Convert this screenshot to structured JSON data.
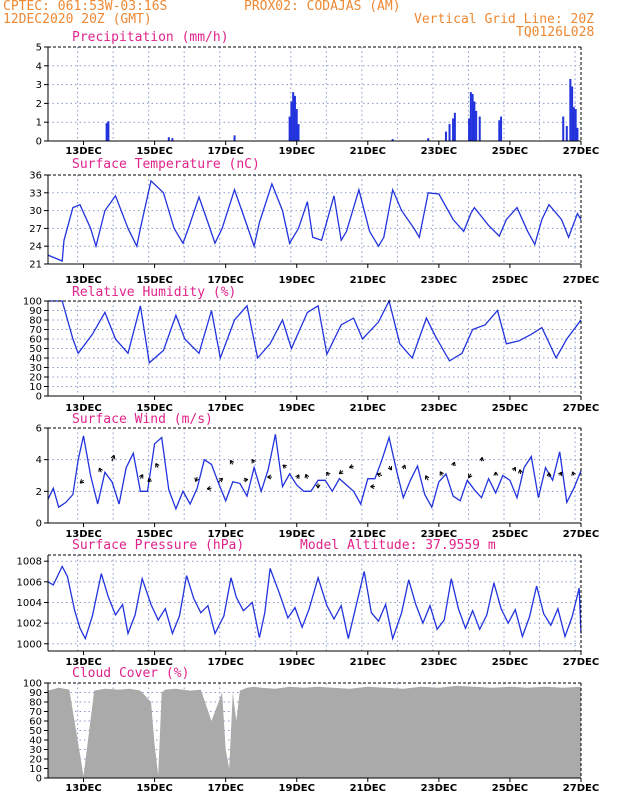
{
  "header": {
    "line1_left": "CPTEC:   061:53W-03:16S",
    "line1_right": "PROX02: CODAJAS (AM)",
    "line2_left": "12DEC2020 20Z (GMT)",
    "line2_right": "Vertical Grid Line: 20Z",
    "line3_right": "TQ0126L028"
  },
  "colors": {
    "header": "#ee8833",
    "title": "#e0228a",
    "series": "#2233dd",
    "cloud": "#aaaaaa",
    "grid": "#8899cc"
  },
  "chart_data": [
    {
      "type": "bar",
      "title": "Precipitation (mm/h)",
      "ylim": [
        0,
        5
      ],
      "yticks": [
        "0",
        "1",
        "2",
        "3",
        "4",
        "5"
      ],
      "xticks": [
        "13DEC",
        "15DEC",
        "17DEC",
        "19DEC",
        "21DEC",
        "23DEC",
        "25DEC",
        "27DEC"
      ],
      "bars": [
        [
          13.65,
          0.95
        ],
        [
          13.7,
          1.05
        ],
        [
          15.4,
          0.2
        ],
        [
          15.5,
          0.15
        ],
        [
          17.25,
          0.3
        ],
        [
          18.8,
          1.3
        ],
        [
          18.85,
          2.1
        ],
        [
          18.9,
          2.6
        ],
        [
          18.95,
          2.4
        ],
        [
          19.0,
          1.7
        ],
        [
          19.05,
          0.9
        ],
        [
          21.7,
          0.1
        ],
        [
          22.7,
          0.15
        ],
        [
          23.2,
          0.5
        ],
        [
          23.3,
          0.9
        ],
        [
          23.4,
          1.2
        ],
        [
          23.45,
          1.5
        ],
        [
          23.85,
          1.2
        ],
        [
          23.9,
          2.6
        ],
        [
          23.95,
          2.5
        ],
        [
          24.0,
          2.1
        ],
        [
          24.05,
          1.6
        ],
        [
          24.15,
          1.3
        ],
        [
          24.7,
          1.1
        ],
        [
          24.75,
          1.3
        ],
        [
          26.5,
          1.3
        ],
        [
          26.6,
          0.8
        ],
        [
          26.7,
          3.3
        ],
        [
          26.75,
          2.9
        ],
        [
          26.8,
          1.8
        ],
        [
          26.85,
          1.7
        ],
        [
          26.9,
          0.7
        ]
      ]
    },
    {
      "type": "line",
      "title": "Surface Temperature (nC)",
      "ylim": [
        21,
        36
      ],
      "yticks": [
        "21",
        "24",
        "27",
        "30",
        "33",
        "36"
      ],
      "xticks": [
        "13DEC",
        "15DEC",
        "17DEC",
        "19DEC",
        "21DEC",
        "23DEC",
        "25DEC",
        "27DEC"
      ],
      "x": [
        12.0,
        12.4,
        12.45,
        12.7,
        12.9,
        13.2,
        13.35,
        13.6,
        13.9,
        14.25,
        14.5,
        14.6,
        14.9,
        15.25,
        15.55,
        15.8,
        15.95,
        16.25,
        16.5,
        16.7,
        16.9,
        17.25,
        17.6,
        17.8,
        17.95,
        18.3,
        18.6,
        18.8,
        19.05,
        19.3,
        19.45,
        19.7,
        20.05,
        20.25,
        20.4,
        20.75,
        21.05,
        21.3,
        21.45,
        21.7,
        21.95,
        22.3,
        22.45,
        22.7,
        23.0,
        23.4,
        23.7,
        23.9,
        24.0,
        24.4,
        24.7,
        24.9,
        25.2,
        25.5,
        25.7,
        25.9,
        26.1,
        26.45,
        26.65,
        26.9,
        27.0
      ],
      "values": [
        22.5,
        21.5,
        25,
        30.5,
        31,
        27,
        24,
        30,
        32.5,
        27,
        24,
        27,
        35,
        33,
        27,
        24.5,
        27,
        32.3,
        28,
        24.5,
        27,
        33.5,
        27.5,
        24,
        28,
        34.5,
        30,
        24.5,
        27,
        31.5,
        25.5,
        25,
        32.5,
        25,
        26.5,
        33.5,
        26.5,
        24,
        25.5,
        33.5,
        30,
        27,
        25.5,
        33,
        32.8,
        28.5,
        26.5,
        29.5,
        30.5,
        27.5,
        25.7,
        28.5,
        30.5,
        26.5,
        24.3,
        28.5,
        31,
        28.5,
        25.5,
        29.5,
        28.5
      ]
    },
    {
      "type": "line",
      "title": "Relative Humidity (%)",
      "ylim": [
        0,
        100
      ],
      "yticks": [
        "0",
        "10",
        "20",
        "30",
        "40",
        "50",
        "60",
        "70",
        "80",
        "90",
        "100"
      ],
      "xticks": [
        "13DEC",
        "15DEC",
        "17DEC",
        "19DEC",
        "21DEC",
        "23DEC",
        "25DEC",
        "27DEC"
      ],
      "x": [
        12.0,
        12.4,
        12.7,
        12.85,
        13.25,
        13.6,
        13.9,
        14.25,
        14.6,
        14.85,
        15.25,
        15.6,
        15.85,
        16.25,
        16.6,
        16.85,
        17.25,
        17.6,
        17.9,
        18.25,
        18.6,
        18.85,
        19.3,
        19.6,
        19.85,
        20.25,
        20.6,
        20.85,
        21.3,
        21.6,
        21.9,
        22.25,
        22.65,
        22.9,
        23.3,
        23.65,
        23.95,
        24.3,
        24.65,
        24.9,
        25.25,
        25.6,
        25.9,
        26.3,
        26.6,
        26.9,
        27.0
      ],
      "values": [
        100,
        100,
        60,
        45,
        65,
        88,
        60,
        45,
        95,
        35,
        48,
        85,
        60,
        45,
        90,
        40,
        80,
        95,
        40,
        55,
        80,
        50,
        88,
        95,
        44,
        75,
        82,
        60,
        78,
        100,
        55,
        40,
        82,
        63,
        37,
        45,
        70,
        75,
        90,
        55,
        58,
        65,
        72,
        40,
        60,
        75,
        80
      ]
    },
    {
      "type": "line",
      "title": "Surface Wind (m/s)",
      "ylim": [
        0,
        6
      ],
      "yticks": [
        "0",
        "2",
        "4",
        "6"
      ],
      "xticks": [
        "13DEC",
        "15DEC",
        "17DEC",
        "19DEC",
        "21DEC",
        "23DEC",
        "25DEC",
        "27DEC"
      ],
      "x": [
        12.0,
        12.15,
        12.3,
        12.5,
        12.7,
        12.85,
        13.0,
        13.2,
        13.4,
        13.6,
        13.8,
        14.0,
        14.2,
        14.4,
        14.6,
        14.8,
        15.0,
        15.2,
        15.4,
        15.6,
        15.8,
        16.0,
        16.2,
        16.4,
        16.6,
        16.8,
        17.0,
        17.2,
        17.4,
        17.6,
        17.8,
        18.0,
        18.2,
        18.4,
        18.6,
        18.8,
        19.0,
        19.2,
        19.4,
        19.6,
        19.8,
        20.0,
        20.2,
        20.4,
        20.6,
        20.8,
        21.0,
        21.2,
        21.4,
        21.6,
        21.8,
        22.0,
        22.2,
        22.4,
        22.6,
        22.8,
        23.0,
        23.2,
        23.4,
        23.6,
        23.8,
        24.0,
        24.2,
        24.4,
        24.6,
        24.8,
        25.0,
        25.2,
        25.4,
        25.6,
        25.8,
        26.0,
        26.2,
        26.4,
        26.6,
        26.8,
        27.0
      ],
      "values": [
        1.5,
        2.2,
        1.0,
        1.3,
        1.8,
        4.0,
        5.5,
        3.0,
        1.2,
        3.2,
        2.6,
        1.2,
        3.5,
        4.4,
        2.0,
        2.0,
        5.0,
        5.4,
        2.1,
        0.9,
        2.0,
        1.2,
        2.2,
        4.0,
        3.7,
        2.5,
        1.4,
        2.6,
        2.5,
        1.7,
        3.5,
        2.0,
        3.4,
        5.6,
        2.3,
        3.1,
        2.4,
        2.0,
        2.0,
        2.7,
        2.7,
        2.0,
        2.8,
        2.4,
        2.0,
        1.2,
        2.8,
        2.8,
        4.0,
        5.4,
        3.4,
        1.6,
        2.7,
        3.6,
        1.8,
        1.0,
        2.6,
        3.1,
        1.7,
        1.4,
        2.7,
        2.1,
        1.6,
        2.8,
        1.9,
        3.0,
        2.7,
        1.6,
        3.5,
        4.2,
        1.6,
        3.5,
        2.7,
        4.5,
        1.3,
        2.2,
        3.3
      ],
      "arrows": [
        [
          13.0,
          2.7,
          220,
          0.28
        ],
        [
          13.5,
          3.2,
          115,
          0.3
        ],
        [
          13.8,
          3.9,
          70,
          0.4
        ],
        [
          14.6,
          2.8,
          60,
          0.3
        ],
        [
          14.9,
          2.8,
          225,
          0.28
        ],
        [
          15.1,
          3.5,
          120,
          0.3
        ],
        [
          16.2,
          2.9,
          250,
          0.3
        ],
        [
          16.6,
          2.2,
          190,
          0.28
        ],
        [
          16.8,
          2.6,
          40,
          0.34
        ],
        [
          17.2,
          3.7,
          120,
          0.3
        ],
        [
          17.5,
          2.7,
          10,
          0.28
        ],
        [
          17.8,
          3.8,
          120,
          0.25
        ],
        [
          18.3,
          2.9,
          180,
          0.28
        ],
        [
          18.7,
          3.5,
          140,
          0.26
        ],
        [
          19.0,
          2.8,
          60,
          0.28
        ],
        [
          19.3,
          2.8,
          110,
          0.3
        ],
        [
          19.6,
          2.5,
          270,
          0.3
        ],
        [
          19.9,
          3.0,
          120,
          0.25
        ],
        [
          20.3,
          3.3,
          220,
          0.3
        ],
        [
          20.6,
          3.6,
          200,
          0.28
        ],
        [
          21.2,
          2.3,
          180,
          0.28
        ],
        [
          21.4,
          3.0,
          160,
          0.33
        ],
        [
          21.6,
          3.6,
          300,
          0.3
        ],
        [
          22.0,
          3.4,
          70,
          0.28
        ],
        [
          22.7,
          2.7,
          120,
          0.33
        ],
        [
          23.1,
          3.0,
          120,
          0.28
        ],
        [
          23.4,
          3.6,
          70,
          0.26
        ],
        [
          23.9,
          3.1,
          240,
          0.28
        ],
        [
          24.2,
          3.9,
          80,
          0.25
        ],
        [
          24.6,
          3.0,
          90,
          0.22
        ],
        [
          25.1,
          3.3,
          60,
          0.25
        ],
        [
          25.3,
          3.1,
          100,
          0.28
        ],
        [
          26.1,
          2.9,
          90,
          0.28
        ],
        [
          26.4,
          3.0,
          60,
          0.25
        ],
        [
          26.8,
          3.0,
          110,
          0.25
        ]
      ]
    },
    {
      "type": "line",
      "title": "Surface Pressure (hPa)",
      "annotation": "Model Altitude: 37.9559 m",
      "ylim": [
        999.3,
        1008.6
      ],
      "yticks": [
        "1000",
        "1002",
        "1004",
        "1006",
        "1008"
      ],
      "xticks": [
        "13DEC",
        "15DEC",
        "17DEC",
        "19DEC",
        "21DEC",
        "23DEC",
        "25DEC",
        "27DEC"
      ],
      "x": [
        12.0,
        12.15,
        12.4,
        12.55,
        12.75,
        12.9,
        13.05,
        13.25,
        13.5,
        13.7,
        13.9,
        14.1,
        14.25,
        14.45,
        14.65,
        14.9,
        15.1,
        15.3,
        15.5,
        15.7,
        15.9,
        16.1,
        16.3,
        16.5,
        16.7,
        16.95,
        17.15,
        17.3,
        17.5,
        17.75,
        17.95,
        18.1,
        18.25,
        18.5,
        18.75,
        18.95,
        19.15,
        19.35,
        19.6,
        19.85,
        20.05,
        20.25,
        20.45,
        20.65,
        20.9,
        21.1,
        21.3,
        21.5,
        21.7,
        21.95,
        22.15,
        22.35,
        22.55,
        22.75,
        22.95,
        23.15,
        23.35,
        23.55,
        23.75,
        23.95,
        24.15,
        24.35,
        24.55,
        24.75,
        24.95,
        25.15,
        25.35,
        25.55,
        25.75,
        25.95,
        26.15,
        26.35,
        26.55,
        26.75,
        26.95,
        27.0
      ],
      "values": [
        1006,
        1005.7,
        1007.5,
        1006.5,
        1003.2,
        1001.5,
        1000.5,
        1002.7,
        1006.8,
        1004.5,
        1002.8,
        1003.8,
        1001,
        1002.8,
        1006.3,
        1003.8,
        1002.3,
        1003.4,
        1001,
        1002.7,
        1006.6,
        1004.4,
        1003,
        1003.7,
        1001,
        1002.7,
        1006.4,
        1004.5,
        1003.2,
        1004,
        1000.6,
        1003,
        1007.3,
        1005,
        1002.5,
        1003.5,
        1001.6,
        1003.4,
        1006.4,
        1003.7,
        1002.4,
        1003.7,
        1000.5,
        1003.4,
        1007,
        1003,
        1002.2,
        1003.8,
        1000.5,
        1003,
        1006.2,
        1003.8,
        1002,
        1003.7,
        1001.4,
        1002.3,
        1006.3,
        1003.4,
        1001.5,
        1003.2,
        1001.4,
        1002.8,
        1005.9,
        1003.4,
        1002,
        1003.3,
        1000.7,
        1002.6,
        1005.6,
        1002.9,
        1001.8,
        1003.4,
        1000.7,
        1002.6,
        1005.4,
        1001
      ]
    },
    {
      "type": "bar",
      "title": "Cloud Cover (%)",
      "ylim": [
        0,
        100
      ],
      "yticks": [
        "0",
        "10",
        "20",
        "30",
        "40",
        "50",
        "60",
        "70",
        "80",
        "90",
        "100"
      ],
      "xticks": [
        "13DEC",
        "15DEC",
        "17DEC",
        "19DEC",
        "21DEC",
        "23DEC",
        "25DEC",
        "27DEC"
      ],
      "x": [
        12.0,
        12.3,
        12.6,
        12.9,
        13.0,
        13.3,
        13.6,
        14.0,
        14.3,
        14.6,
        14.9,
        15.0,
        15.1,
        15.2,
        15.3,
        15.6,
        16.0,
        16.3,
        16.6,
        16.9,
        17.0,
        17.1,
        17.2,
        17.3,
        17.4,
        17.6,
        17.8,
        18.0,
        18.4,
        18.8,
        19.2,
        19.6,
        20.0,
        20.5,
        21.0,
        21.5,
        22.0,
        22.5,
        23.0,
        23.5,
        24.0,
        24.5,
        25.0,
        25.5,
        26.0,
        26.5,
        27.0
      ],
      "values": [
        92,
        95,
        93,
        25,
        2,
        92,
        94,
        93,
        94,
        92,
        80,
        35,
        3,
        90,
        93,
        94,
        92,
        93,
        60,
        90,
        30,
        10,
        90,
        60,
        92,
        95,
        96,
        95,
        94,
        96,
        95,
        96,
        95,
        94,
        96,
        95,
        94,
        96,
        95,
        97,
        96,
        95,
        96,
        95,
        96,
        95,
        96
      ]
    }
  ]
}
